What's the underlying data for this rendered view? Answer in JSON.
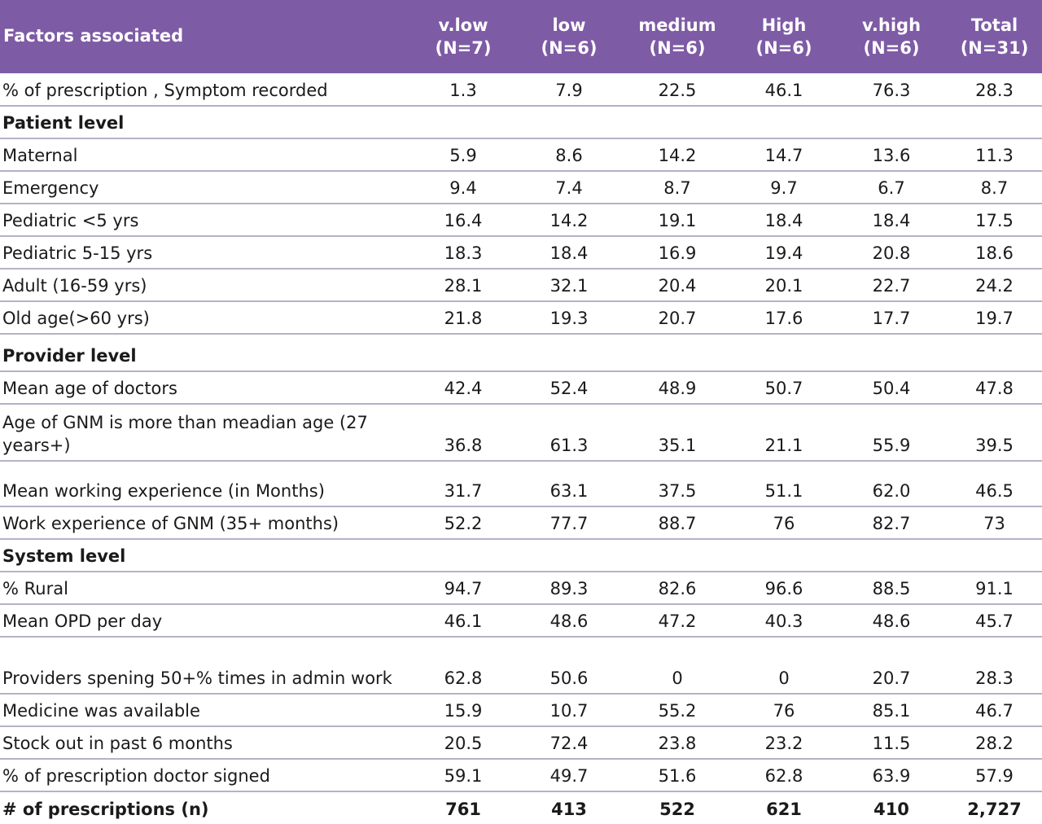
{
  "table": {
    "headers": [
      [
        "Factors associated",
        ""
      ],
      [
        "v.low",
        "(N=7)"
      ],
      [
        "low",
        "(N=6)"
      ],
      [
        "medium",
        "(N=6)"
      ],
      [
        "High",
        "(N=6)"
      ],
      [
        "v.high",
        "(N=6)"
      ],
      [
        "Total",
        "(N=31)"
      ]
    ],
    "rows": [
      {
        "kind": "data",
        "h": "h40",
        "cells": [
          "% of prescription , Symptom recorded",
          "1.3",
          "7.9",
          "22.5",
          "46.1",
          "76.3",
          "28.3"
        ]
      },
      {
        "kind": "section",
        "h": "h40",
        "cells": [
          "Patient level"
        ]
      },
      {
        "kind": "data",
        "h": "h40",
        "cells": [
          "Maternal",
          "5.9",
          "8.6",
          "14.2",
          "14.7",
          "13.6",
          "11.3"
        ]
      },
      {
        "kind": "data",
        "h": "h40",
        "cells": [
          "Emergency",
          "9.4",
          "7.4",
          "8.7",
          "9.7",
          "6.7",
          "8.7"
        ]
      },
      {
        "kind": "data",
        "h": "h40",
        "cells": [
          "Pediatric <5 yrs",
          "16.4",
          "14.2",
          "19.1",
          "18.4",
          "18.4",
          "17.5"
        ]
      },
      {
        "kind": "data",
        "h": "h40",
        "cells": [
          "Pediatric 5-15 yrs",
          "18.3",
          "18.4",
          "16.9",
          "19.4",
          "20.8",
          "18.6"
        ]
      },
      {
        "kind": "data",
        "h": "h40",
        "cells": [
          "Adult (16-59 yrs)",
          "28.1",
          "32.1",
          "20.4",
          "20.1",
          "22.7",
          "24.2"
        ]
      },
      {
        "kind": "data",
        "h": "h40",
        "cells": [
          "Old age(>60 yrs)",
          "21.8",
          "19.3",
          "20.7",
          "17.6",
          "17.7",
          "19.7"
        ]
      },
      {
        "kind": "section",
        "h": "h46",
        "cells": [
          "Provider level"
        ]
      },
      {
        "kind": "data",
        "h": "h40",
        "cells": [
          "Mean age of doctors",
          "42.4",
          "52.4",
          "48.9",
          "50.7",
          "50.4",
          "47.8"
        ]
      },
      {
        "kind": "data",
        "h": "h70",
        "cells": [
          "Age of GNM is more than meadian age (27 years+)",
          "36.8",
          "61.3",
          "35.1",
          "21.1",
          "55.9",
          "39.5"
        ]
      },
      {
        "kind": "data",
        "h": "h56",
        "cells": [
          "Mean working experience (in Months)",
          "31.7",
          "63.1",
          "37.5",
          "51.1",
          "62.0",
          "46.5"
        ]
      },
      {
        "kind": "data",
        "h": "h40",
        "cells": [
          "Work experience of GNM (35+ months)",
          "52.2",
          "77.7",
          "88.7",
          "76",
          "82.7",
          "73"
        ]
      },
      {
        "kind": "section",
        "h": "h40",
        "cells": [
          "System level"
        ]
      },
      {
        "kind": "data",
        "h": "h40",
        "cells": [
          "% Rural",
          "94.7",
          "89.3",
          "82.6",
          "96.6",
          "88.5",
          "91.1"
        ]
      },
      {
        "kind": "data",
        "h": "h40",
        "cells": [
          "Mean OPD per day",
          "46.1",
          "48.6",
          "47.2",
          "40.3",
          "48.6",
          "45.7"
        ]
      },
      {
        "kind": "data",
        "h": "h70",
        "cells": [
          "Providers spening 50+% times in admin work",
          "62.8",
          "50.6",
          "0",
          "0",
          "20.7",
          "28.3"
        ]
      },
      {
        "kind": "data",
        "h": "h40",
        "cells": [
          "Medicine was available",
          "15.9",
          "10.7",
          "55.2",
          "76",
          "85.1",
          "46.7"
        ]
      },
      {
        "kind": "data",
        "h": "h40",
        "cells": [
          "Stock out in past 6 months",
          "20.5",
          "72.4",
          "23.8",
          "23.2",
          "11.5",
          "28.2"
        ]
      },
      {
        "kind": "data",
        "h": "h40",
        "cells": [
          "% of prescription doctor signed",
          "59.1",
          "49.7",
          "51.6",
          "62.8",
          "63.9",
          "57.9"
        ]
      },
      {
        "kind": "total",
        "h": "h40",
        "cells": [
          "# of prescriptions (n)",
          "761",
          "413",
          "522",
          "621",
          "410",
          "2,727"
        ]
      }
    ]
  }
}
